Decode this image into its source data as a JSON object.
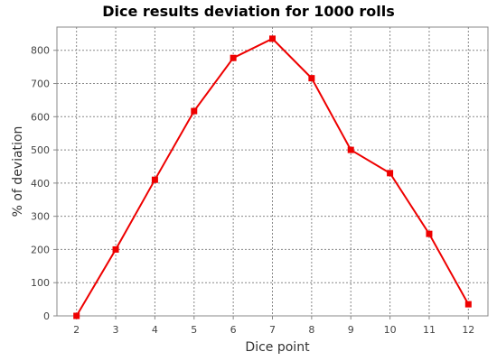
{
  "chart_data": {
    "type": "line",
    "title": "Dice results deviation for 1000 rolls",
    "xlabel": "Dice point",
    "ylabel": "% of deviation",
    "x": [
      2,
      3,
      4,
      5,
      6,
      7,
      8,
      9,
      10,
      11,
      12
    ],
    "series": [
      {
        "values": [
          0,
          200,
          410,
          617,
          777,
          835,
          716,
          500,
          430,
          247,
          35
        ]
      }
    ],
    "ylim": [
      0,
      870
    ],
    "yticks": [
      0,
      100,
      200,
      300,
      400,
      500,
      600,
      700,
      800
    ],
    "grid": true,
    "legend": "none",
    "colors": {
      "series": "#ee0000",
      "grid": "#888888"
    }
  }
}
